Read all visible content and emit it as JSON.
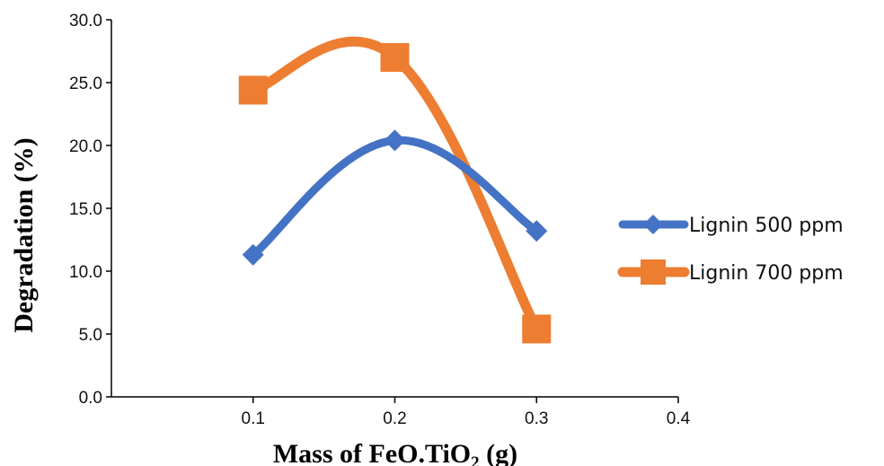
{
  "chart_data": {
    "type": "line",
    "xlabel": "Mass of FeO.TiO",
    "xlabel_subscript": "2",
    "xlabel_suffix": " (g)",
    "ylabel": "Degradation (%)",
    "xlim": [
      0.0,
      0.4
    ],
    "ylim": [
      0.0,
      30.0
    ],
    "xticks": [
      0.1,
      0.2,
      0.3,
      0.4
    ],
    "xtick_labels": [
      "0.1",
      "0.2",
      "0.3",
      "0.4"
    ],
    "yticks": [
      0,
      5,
      10,
      15,
      20,
      25,
      30
    ],
    "ytick_labels": [
      "0.0",
      "5.0",
      "10.0",
      "15.0",
      "20.0",
      "25.0",
      "30.0"
    ],
    "grid": false,
    "legend_position": "right",
    "series": [
      {
        "name": "Lignin 500 ppm",
        "color": "#4472C4",
        "marker": "diamond",
        "x": [
          0.1,
          0.2,
          0.3
        ],
        "y": [
          11.3,
          20.4,
          13.2
        ]
      },
      {
        "name": "Lignin 700 ppm",
        "color": "#ED7D31",
        "marker": "square",
        "x": [
          0.1,
          0.2,
          0.3
        ],
        "y": [
          24.4,
          27.0,
          5.4
        ]
      }
    ]
  }
}
